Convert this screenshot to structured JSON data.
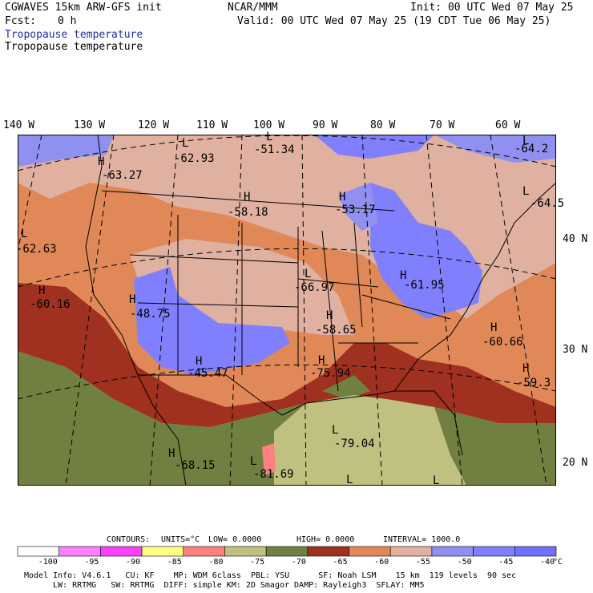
{
  "header": {
    "model": "CGWAVES 15km ARW-GFS init",
    "org": "NCAR/MMM",
    "init": "Init: 00 UTC Wed 07 May 25",
    "fcst_label": "Fcst:",
    "fcst_value": "0 h",
    "valid": "Valid: 00 UTC Wed 07 May 25 (19 CDT Tue 06 May 25)",
    "field_blue": "Tropopause temperature",
    "field_black": "Tropopause temperature"
  },
  "map": {
    "lon_labels": [
      "140 W",
      "130 W",
      "120 W",
      "110 W",
      "100 W",
      "90 W",
      "80 W",
      "70 W",
      "60 W"
    ],
    "lat_labels": [
      "40 N",
      "30 N",
      "20 N"
    ],
    "features": [
      {
        "type": "L",
        "value": "-62.93"
      },
      {
        "type": "L",
        "value": "-51.34"
      },
      {
        "type": "L",
        "value": "-64.2"
      },
      {
        "type": "H",
        "value": "-63.27"
      },
      {
        "type": "H",
        "value": "-58.18"
      },
      {
        "type": "H",
        "value": "-53.17"
      },
      {
        "type": "L",
        "value": "-64.5"
      },
      {
        "type": "L",
        "value": "-62.63"
      },
      {
        "type": "L",
        "value": "-66.97"
      },
      {
        "type": "H",
        "value": "-61.95"
      },
      {
        "type": "H",
        "value": "-60.16"
      },
      {
        "type": "H",
        "value": "-48.75"
      },
      {
        "type": "H",
        "value": "-58.65"
      },
      {
        "type": "H",
        "value": "-60.66"
      },
      {
        "type": "H",
        "value": "-45.47"
      },
      {
        "type": "H",
        "value": "-75.94"
      },
      {
        "type": "H",
        "value": "-59.3"
      },
      {
        "type": "L",
        "value": "-79.04"
      },
      {
        "type": "H",
        "value": "-68.15"
      },
      {
        "type": "L",
        "value": "-81.69"
      },
      {
        "type": "L",
        "value": ""
      },
      {
        "type": "L",
        "value": ""
      }
    ]
  },
  "contours": {
    "label": "CONTOURS:",
    "units": "UNITS=°C",
    "low": "LOW= 0.0000",
    "high": "HIGH= 0.0000",
    "interval": "INTERVAL= 1000.0"
  },
  "colorbar": {
    "colors": [
      "#ffffff",
      "#ff80ff",
      "#ff40ff",
      "#ffff80",
      "#ff8080",
      "#c0c080",
      "#708040",
      "#a03020",
      "#e08858",
      "#e0b0a0",
      "#9090f0",
      "#8080ff",
      "#7070ff"
    ],
    "labels": [
      "-100",
      "-95",
      "-90",
      "-85",
      "-80",
      "-75",
      "-70",
      "-65",
      "-60",
      "-55",
      "-50",
      "-45",
      "-40"
    ],
    "unit": "°C"
  },
  "footer": {
    "line1": "Model Info: V4.6.1   CU: KF    MP: WDM 6class  PBL: YSU      SF: Noah LSM    15 km  119 levels  90 sec",
    "line2": "LW: RRTMG   SW: RRTMG  DIFF: simple KM: 2D Smagor DAMP: Rayleigh3  SFLAY: MM5"
  }
}
